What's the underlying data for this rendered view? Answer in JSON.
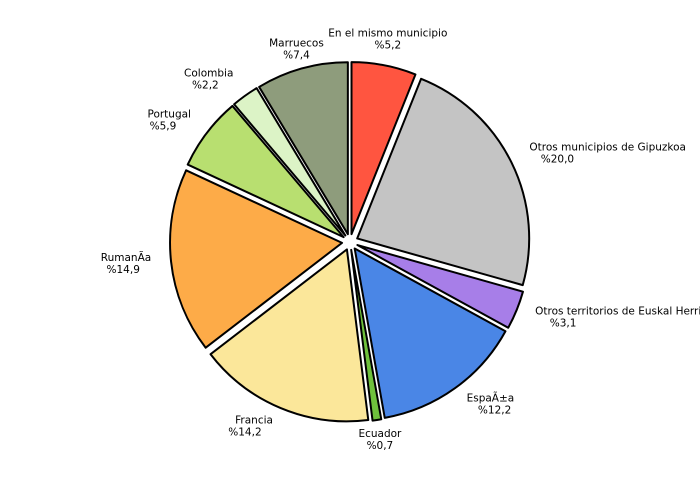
{
  "chart_data": {
    "type": "pie",
    "title": "",
    "slices": [
      {
        "name": "En el mismo municipio",
        "label": "%5,2",
        "value": 5.2,
        "color": "#ff5540"
      },
      {
        "name": "Otros municipios de Gipuzkoa",
        "label": "%20,0",
        "value": 20.0,
        "color": "#c4c4c4"
      },
      {
        "name": "Otros territorios de Euskal Herria",
        "label": "%3,1",
        "value": 3.1,
        "color": "#a77ee8"
      },
      {
        "name": "EspaÃ±a",
        "label": "%12,2",
        "value": 12.2,
        "color": "#4a86e6"
      },
      {
        "name": "Ecuador",
        "label": "%0,7",
        "value": 0.7,
        "color": "#6fc13c"
      },
      {
        "name": "Francia",
        "label": "%14,2",
        "value": 14.2,
        "color": "#fbe79a"
      },
      {
        "name": "RumanÃ­a",
        "label": "%14,9",
        "value": 14.9,
        "color": "#fdab48"
      },
      {
        "name": "Portugal",
        "label": "%5,9",
        "value": 5.9,
        "color": "#b8df70"
      },
      {
        "name": "Colombia",
        "label": "%2,2",
        "value": 2.2,
        "color": "#dcf3c6"
      },
      {
        "name": "Marruecos",
        "label": "%7,4",
        "value": 7.4,
        "color": "#8e9c7c"
      }
    ]
  }
}
